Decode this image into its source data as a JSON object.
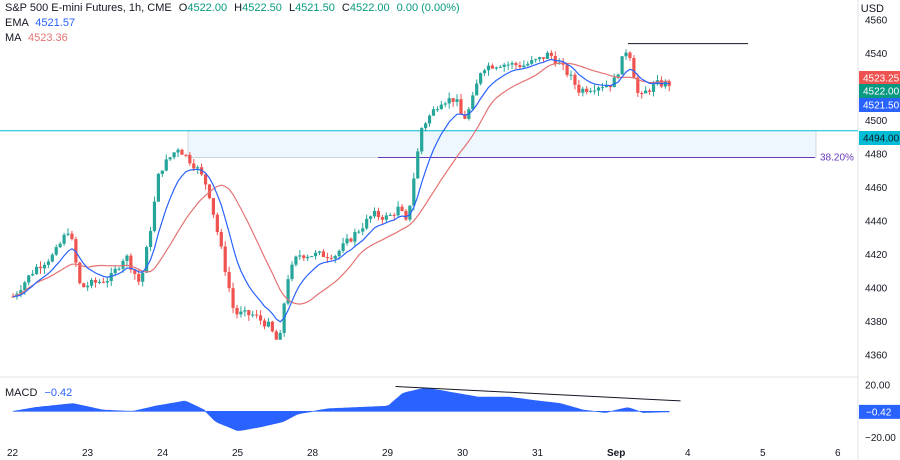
{
  "header": {
    "title": "S&P 500 E-mini Futures, 1h, CME",
    "o_label": "O",
    "o": "4522.00",
    "h_label": "H",
    "h": "4522.50",
    "l_label": "L",
    "l": "4521.50",
    "c_label": "C",
    "c": "4522.00",
    "change": "0.00 (0.00%)",
    "ema_label": "EMA",
    "ema": "4521.57",
    "ma_label": "MA",
    "ma": "4523.36",
    "macd_label": "MACD",
    "macd": "−0.42",
    "currency": "USD"
  },
  "colors": {
    "up": "#26a69a",
    "down": "#ef5350",
    "ema": "#2962ff",
    "ma": "#e57373",
    "macd": "#2962ff",
    "zone": "#e3f2fd",
    "zone_edge": "#00bcd4",
    "fib": "#673ab7",
    "sell_badge": "#ef5350",
    "buy_badge": "#2962ff",
    "last_badge": "#089981",
    "level_badge": "#00bcd4"
  },
  "chart_data": [
    {
      "type": "candlestick",
      "title": "S&P 500 E-mini Futures, 1h, CME",
      "x_ticks": [
        "22",
        "23",
        "24",
        "25",
        "28",
        "29",
        "30",
        "31",
        "Sep",
        "4",
        "5",
        "6"
      ],
      "y_ticks": [
        4360,
        4380,
        4400,
        4420,
        4440,
        4460,
        4480,
        4500,
        4520,
        4540,
        4560
      ],
      "ylim": [
        4350,
        4572
      ],
      "price_labels": [
        {
          "value": 4523.25,
          "label": "4523.25",
          "kind": "sell"
        },
        {
          "value": 4522.0,
          "label": "4522.00",
          "kind": "last"
        },
        {
          "value": 4521.5,
          "label": "4521.50",
          "kind": "buy"
        },
        {
          "value": 4494.0,
          "label": "4494.00",
          "kind": "level"
        }
      ],
      "horizontal_level": 4494,
      "zone": {
        "from": 4478,
        "to": 4494
      },
      "fib_level": {
        "value": 4478,
        "label": "38.20%"
      },
      "resistance_line": 4546,
      "anchors": [
        {
          "x": 0,
          "p": 4395
        },
        {
          "x": 0.3,
          "p": 4412
        },
        {
          "x": 0.55,
          "p": 4420
        },
        {
          "x": 0.75,
          "p": 4436
        },
        {
          "x": 0.9,
          "p": 4400
        },
        {
          "x": 1.0,
          "p": 4402
        },
        {
          "x": 1.3,
          "p": 4406
        },
        {
          "x": 1.5,
          "p": 4420
        },
        {
          "x": 1.7,
          "p": 4402
        },
        {
          "x": 1.85,
          "p": 4440
        },
        {
          "x": 1.95,
          "p": 4470
        },
        {
          "x": 2.2,
          "p": 4484
        },
        {
          "x": 2.45,
          "p": 4472
        },
        {
          "x": 2.6,
          "p": 4460
        },
        {
          "x": 2.8,
          "p": 4418
        },
        {
          "x": 2.95,
          "p": 4385
        },
        {
          "x": 3.2,
          "p": 4384
        },
        {
          "x": 3.4,
          "p": 4378
        },
        {
          "x": 3.55,
          "p": 4366
        },
        {
          "x": 3.65,
          "p": 4405
        },
        {
          "x": 3.8,
          "p": 4420
        },
        {
          "x": 4.3,
          "p": 4420
        },
        {
          "x": 4.55,
          "p": 4432
        },
        {
          "x": 4.8,
          "p": 4444
        },
        {
          "x": 5.0,
          "p": 4442
        },
        {
          "x": 5.15,
          "p": 4448
        },
        {
          "x": 5.25,
          "p": 4438
        },
        {
          "x": 5.35,
          "p": 4468
        },
        {
          "x": 5.45,
          "p": 4496
        },
        {
          "x": 5.7,
          "p": 4512
        },
        {
          "x": 5.9,
          "p": 4513
        },
        {
          "x": 6.0,
          "p": 4500
        },
        {
          "x": 6.1,
          "p": 4508
        },
        {
          "x": 6.25,
          "p": 4532
        },
        {
          "x": 6.5,
          "p": 4534
        },
        {
          "x": 6.8,
          "p": 4533
        },
        {
          "x": 7.0,
          "p": 4536
        },
        {
          "x": 7.15,
          "p": 4540
        },
        {
          "x": 7.4,
          "p": 4528
        },
        {
          "x": 7.55,
          "p": 4518
        },
        {
          "x": 7.8,
          "p": 4521
        },
        {
          "x": 8.0,
          "p": 4522
        },
        {
          "x": 8.2,
          "p": 4545
        },
        {
          "x": 8.35,
          "p": 4512
        },
        {
          "x": 8.45,
          "p": 4518
        },
        {
          "x": 8.6,
          "p": 4522
        },
        {
          "x": 8.75,
          "p": 4522
        }
      ]
    },
    {
      "type": "area",
      "title": "MACD",
      "y_ticks": [
        20,
        0,
        -20
      ],
      "y_tick_labels": [
        "20.00",
        "",
        "−20.00"
      ],
      "ylim": [
        -22,
        24
      ],
      "last_label": "−0.42",
      "trend_line": {
        "from": [
          5.1,
          19
        ],
        "to": [
          8.9,
          8
        ]
      },
      "anchors": [
        {
          "x": 0,
          "p": 0
        },
        {
          "x": 0.3,
          "p": 3
        },
        {
          "x": 0.8,
          "p": 6
        },
        {
          "x": 1.2,
          "p": 1
        },
        {
          "x": 1.6,
          "p": 0
        },
        {
          "x": 1.9,
          "p": 4
        },
        {
          "x": 2.3,
          "p": 8
        },
        {
          "x": 2.55,
          "p": 1
        },
        {
          "x": 2.7,
          "p": -8
        },
        {
          "x": 3.0,
          "p": -15
        },
        {
          "x": 3.3,
          "p": -12
        },
        {
          "x": 3.6,
          "p": -8
        },
        {
          "x": 3.8,
          "p": -2
        },
        {
          "x": 4.2,
          "p": 2
        },
        {
          "x": 4.6,
          "p": 3
        },
        {
          "x": 5.0,
          "p": 4
        },
        {
          "x": 5.2,
          "p": 14
        },
        {
          "x": 5.5,
          "p": 18
        },
        {
          "x": 5.9,
          "p": 14
        },
        {
          "x": 6.2,
          "p": 11
        },
        {
          "x": 6.6,
          "p": 11
        },
        {
          "x": 7.0,
          "p": 8
        },
        {
          "x": 7.3,
          "p": 6
        },
        {
          "x": 7.6,
          "p": 1
        },
        {
          "x": 7.9,
          "p": -1
        },
        {
          "x": 8.2,
          "p": 3
        },
        {
          "x": 8.4,
          "p": -1
        },
        {
          "x": 8.75,
          "p": -0.42
        }
      ]
    }
  ]
}
